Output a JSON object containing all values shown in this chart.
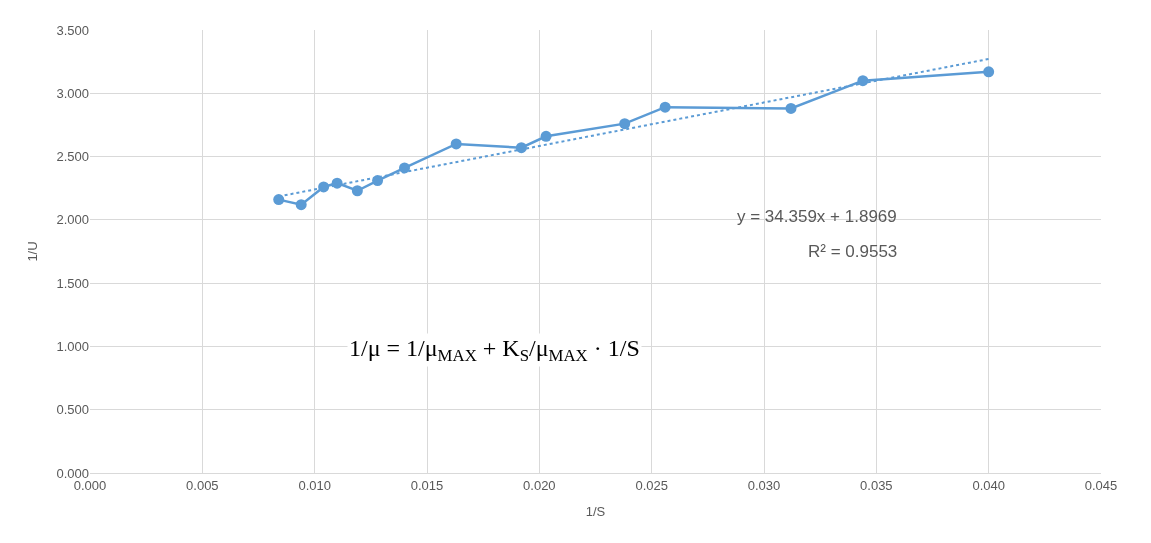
{
  "chart_data": {
    "type": "line",
    "xlabel": "1/S",
    "ylabel": "1/U",
    "series": [
      {
        "color": "#5b9bd5",
        "marker": "circle",
        "line_style": "solid",
        "x": [
          0.0084,
          0.0094,
          0.0104,
          0.011,
          0.0119,
          0.0128,
          0.014,
          0.0163,
          0.0192,
          0.0203,
          0.0238,
          0.0256,
          0.0312,
          0.0344,
          0.04
        ],
        "values": [
          2.16,
          2.12,
          2.26,
          2.29,
          2.23,
          2.31,
          2.41,
          2.6,
          2.57,
          2.66,
          2.76,
          2.89,
          2.88,
          3.1,
          3.17
        ]
      },
      {
        "type": "line",
        "color": "#5b9bd5",
        "marker": "none",
        "line_style": "dotted",
        "x": [
          0.0084,
          0.04
        ],
        "values": [
          2.185,
          3.271
        ]
      }
    ],
    "xlim": [
      0,
      0.045
    ],
    "xticks": [
      {
        "value": 0,
        "label": "0.000"
      },
      {
        "value": 0.005,
        "label": "0.005"
      },
      {
        "value": 0.01,
        "label": "0.010"
      },
      {
        "value": 0.015,
        "label": "0.015"
      },
      {
        "value": 0.02,
        "label": "0.020"
      },
      {
        "value": 0.025,
        "label": "0.025"
      },
      {
        "value": 0.03,
        "label": "0.030"
      },
      {
        "value": 0.035,
        "label": "0.035"
      },
      {
        "value": 0.04,
        "label": "0.040"
      },
      {
        "value": 0.045,
        "label": "0.045"
      }
    ],
    "ylim": [
      0,
      3.5
    ],
    "yticks": [
      {
        "value": 0,
        "label": "0.000"
      },
      {
        "value": 0.5,
        "label": "0.500"
      },
      {
        "value": 1,
        "label": "1.000"
      },
      {
        "value": 1.5,
        "label": "1.500"
      },
      {
        "value": 2,
        "label": "2.000"
      },
      {
        "value": 2.5,
        "label": "2.500"
      },
      {
        "value": 3,
        "label": "3.000"
      },
      {
        "value": 3.5,
        "label": "3.500"
      }
    ],
    "grid": true,
    "annotations": [
      "y = 34.359x + 1.8969",
      "R² = 0.9553",
      "1/μ = 1/μ$_{MAX}$ + K$_{S}$/μ$_{MAX}$ · 1/S"
    ]
  }
}
